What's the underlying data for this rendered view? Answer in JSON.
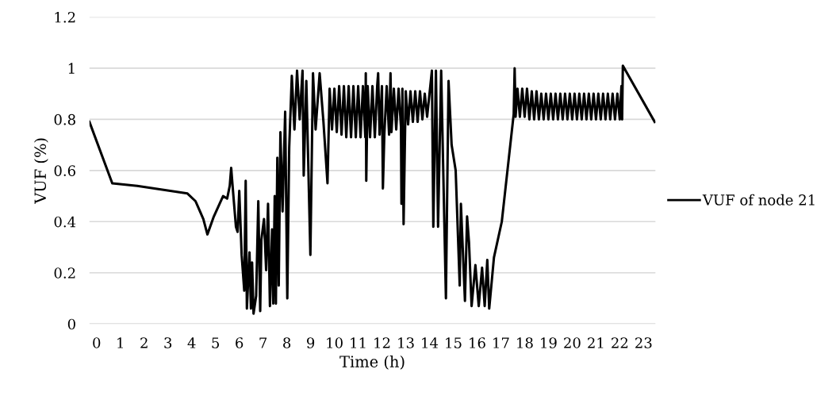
{
  "chart_data": {
    "type": "line",
    "xlabel": "Time (h)",
    "ylabel": "VUF (%)",
    "xlim": [
      -0.3,
      23.5
    ],
    "xticks": [
      0,
      1,
      2,
      3,
      4,
      5,
      6,
      7,
      8,
      9,
      10,
      11,
      12,
      13,
      14,
      15,
      16,
      17,
      18,
      19,
      20,
      21,
      22,
      23
    ],
    "ylim": [
      0,
      1.2
    ],
    "yticks": [
      0,
      0.2,
      0.4,
      0.6,
      0.8,
      1,
      1.2
    ],
    "grid": "y",
    "legend": "right",
    "marker": "none",
    "line_style": "solid",
    "series": [
      {
        "name": "VUF of node 21",
        "color": "#000000",
        "x": [
          -0.3,
          0.66,
          1.71,
          3.82,
          4.16,
          4.49,
          4.66,
          4.93,
          5.32,
          5.49,
          5.6,
          5.66,
          5.71,
          5.86,
          5.93,
          6.0,
          6.1,
          6.21,
          6.27,
          6.32,
          6.43,
          6.49,
          6.54,
          6.6,
          6.71,
          6.8,
          6.88,
          6.93,
          7.04,
          7.13,
          7.21,
          7.29,
          7.38,
          7.43,
          7.49,
          7.54,
          7.6,
          7.66,
          7.73,
          7.82,
          7.93,
          8.02,
          8.1,
          8.21,
          8.32,
          8.43,
          8.54,
          8.66,
          8.71,
          8.82,
          8.99,
          9.1,
          9.21,
          9.38,
          9.54,
          9.71,
          9.8,
          9.9,
          10.0,
          10.1,
          10.2,
          10.3,
          10.4,
          10.5,
          10.6,
          10.7,
          10.8,
          10.9,
          11.0,
          11.1,
          11.2,
          11.3,
          11.32,
          11.34,
          11.4,
          11.5,
          11.6,
          11.7,
          11.8,
          11.84,
          11.9,
          12.0,
          12.04,
          12.1,
          12.2,
          12.3,
          12.36,
          12.4,
          12.5,
          12.6,
          12.7,
          12.8,
          12.82,
          12.86,
          12.91,
          13.0,
          13.1,
          13.2,
          13.3,
          13.4,
          13.5,
          13.6,
          13.7,
          13.8,
          13.9,
          14.0,
          14.1,
          14.16,
          14.27,
          14.36,
          14.49,
          14.69,
          14.8,
          14.93,
          15.1,
          15.27,
          15.32,
          15.49,
          15.58,
          15.66,
          15.77,
          15.93,
          16.07,
          16.21,
          16.32,
          16.43,
          16.51,
          16.71,
          17.04,
          17.54,
          17.58,
          17.62,
          17.7,
          17.8,
          17.9,
          18.0,
          18.1,
          18.2,
          18.3,
          18.4,
          18.5,
          18.6,
          18.7,
          18.8,
          18.9,
          19.0,
          19.1,
          19.2,
          19.3,
          19.4,
          19.5,
          19.6,
          19.7,
          19.8,
          19.9,
          20.0,
          20.1,
          20.2,
          20.3,
          20.4,
          20.5,
          20.6,
          20.7,
          20.8,
          20.9,
          21.0,
          21.1,
          21.2,
          21.3,
          21.4,
          21.5,
          21.6,
          21.7,
          21.8,
          21.9,
          22.0,
          22.07,
          22.1,
          22.13,
          23.47
        ],
        "values": [
          0.79,
          0.55,
          0.54,
          0.51,
          0.48,
          0.41,
          0.35,
          0.42,
          0.5,
          0.49,
          0.54,
          0.61,
          0.55,
          0.38,
          0.36,
          0.52,
          0.27,
          0.13,
          0.56,
          0.06,
          0.28,
          0.06,
          0.24,
          0.04,
          0.11,
          0.48,
          0.05,
          0.33,
          0.41,
          0.21,
          0.47,
          0.07,
          0.37,
          0.08,
          0.5,
          0.08,
          0.65,
          0.15,
          0.75,
          0.44,
          0.83,
          0.1,
          0.69,
          0.97,
          0.76,
          0.99,
          0.8,
          0.99,
          0.58,
          0.95,
          0.27,
          0.98,
          0.76,
          0.98,
          0.79,
          0.55,
          0.92,
          0.76,
          0.92,
          0.75,
          0.93,
          0.74,
          0.93,
          0.73,
          0.93,
          0.73,
          0.93,
          0.73,
          0.93,
          0.73,
          0.93,
          0.73,
          0.98,
          0.56,
          0.93,
          0.73,
          0.93,
          0.73,
          0.93,
          0.98,
          0.74,
          0.93,
          0.53,
          0.74,
          0.93,
          0.74,
          0.98,
          0.75,
          0.92,
          0.76,
          0.92,
          0.77,
          0.47,
          0.92,
          0.39,
          0.91,
          0.78,
          0.91,
          0.79,
          0.91,
          0.79,
          0.91,
          0.8,
          0.9,
          0.81,
          0.9,
          0.99,
          0.38,
          0.99,
          0.38,
          0.99,
          0.1,
          0.95,
          0.7,
          0.6,
          0.15,
          0.47,
          0.09,
          0.42,
          0.32,
          0.07,
          0.23,
          0.07,
          0.22,
          0.07,
          0.25,
          0.06,
          0.26,
          0.4,
          0.82,
          1.0,
          0.81,
          0.92,
          0.81,
          0.92,
          0.81,
          0.92,
          0.8,
          0.91,
          0.8,
          0.91,
          0.8,
          0.9,
          0.8,
          0.9,
          0.8,
          0.9,
          0.8,
          0.9,
          0.8,
          0.9,
          0.8,
          0.9,
          0.8,
          0.9,
          0.8,
          0.9,
          0.8,
          0.9,
          0.8,
          0.9,
          0.8,
          0.9,
          0.8,
          0.9,
          0.8,
          0.9,
          0.8,
          0.9,
          0.8,
          0.9,
          0.8,
          0.9,
          0.8,
          0.9,
          0.8,
          0.93,
          0.8,
          1.01,
          0.79
        ]
      }
    ]
  }
}
